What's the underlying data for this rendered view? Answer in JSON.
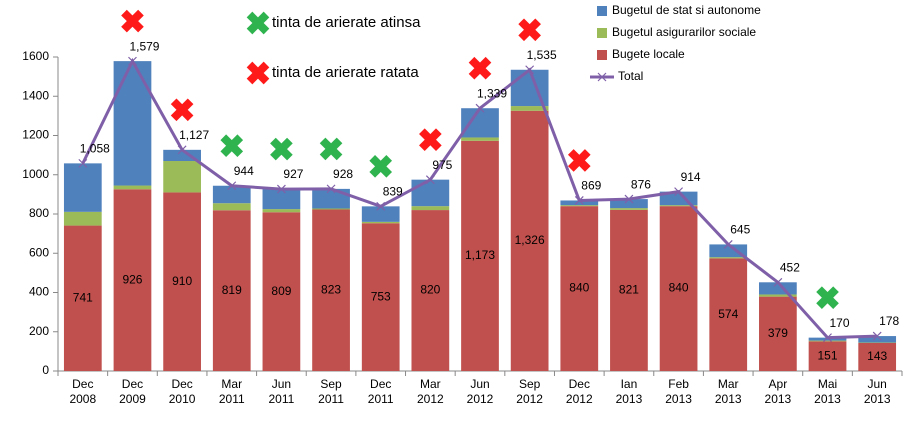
{
  "chart_data": {
    "type": "stacked-bar-line",
    "categories": [
      "Dec 2008",
      "Dec 2009",
      "Dec 2010",
      "Mar 2011",
      "Jun 2011",
      "Sep 2011",
      "Dec 2011",
      "Mar 2012",
      "Jun 2012",
      "Sep 2012",
      "Dec 2012",
      "Ian 2013",
      "Feb 2013",
      "Mar 2013",
      "Apr 2013",
      "Mai 2013",
      "Jun 2013"
    ],
    "series": [
      {
        "name": "Bugete locale",
        "color": "#c0504d",
        "values": [
          741,
          926,
          910,
          819,
          809,
          823,
          753,
          820,
          1173,
          1326,
          840,
          821,
          840,
          574,
          379,
          151,
          143
        ],
        "value_labels": [
          "741",
          "926",
          "910",
          "819",
          "809",
          "823",
          "753",
          "820",
          "1,173",
          "1,326",
          "840",
          "821",
          "840",
          "574",
          "379",
          "151",
          "143"
        ]
      },
      {
        "name": "Bugetul asigurarilor sociale",
        "color": "#9bbb59",
        "values": [
          70,
          19,
          160,
          36,
          16,
          5,
          7,
          20,
          17,
          24,
          5,
          9,
          5,
          6,
          11,
          4,
          2
        ]
      },
      {
        "name": "Bugetul de stat si autonome",
        "color": "#4f81bd",
        "values": [
          247,
          634,
          57,
          89,
          102,
          100,
          79,
          135,
          149,
          185,
          24,
          46,
          69,
          65,
          62,
          15,
          33
        ]
      }
    ],
    "line": {
      "name": "Total",
      "color": "#7f60a8",
      "values": [
        1058,
        1579,
        1127,
        944,
        927,
        928,
        839,
        975,
        1339,
        1535,
        869,
        876,
        914,
        645,
        452,
        170,
        178
      ],
      "value_labels": [
        "1,058",
        "1,579",
        "1,127",
        "944",
        "927",
        "928",
        "839",
        "975",
        "1,339",
        "1,535",
        "869",
        "876",
        "914",
        "645",
        "452",
        "170",
        "178"
      ]
    },
    "target_markers": [
      {
        "label": "tinta de arierate atinsa",
        "color": "#2fb34f"
      },
      {
        "label": "tinta de arierate ratata",
        "color": "#ff1a1a"
      }
    ],
    "target_met": [
      null,
      false,
      false,
      true,
      true,
      true,
      true,
      false,
      false,
      false,
      false,
      null,
      null,
      null,
      null,
      true,
      null
    ],
    "ylim": [
      0,
      1600
    ],
    "yticks": [
      0,
      200,
      400,
      600,
      800,
      1000,
      1200,
      1400,
      1600
    ],
    "grid": false
  }
}
